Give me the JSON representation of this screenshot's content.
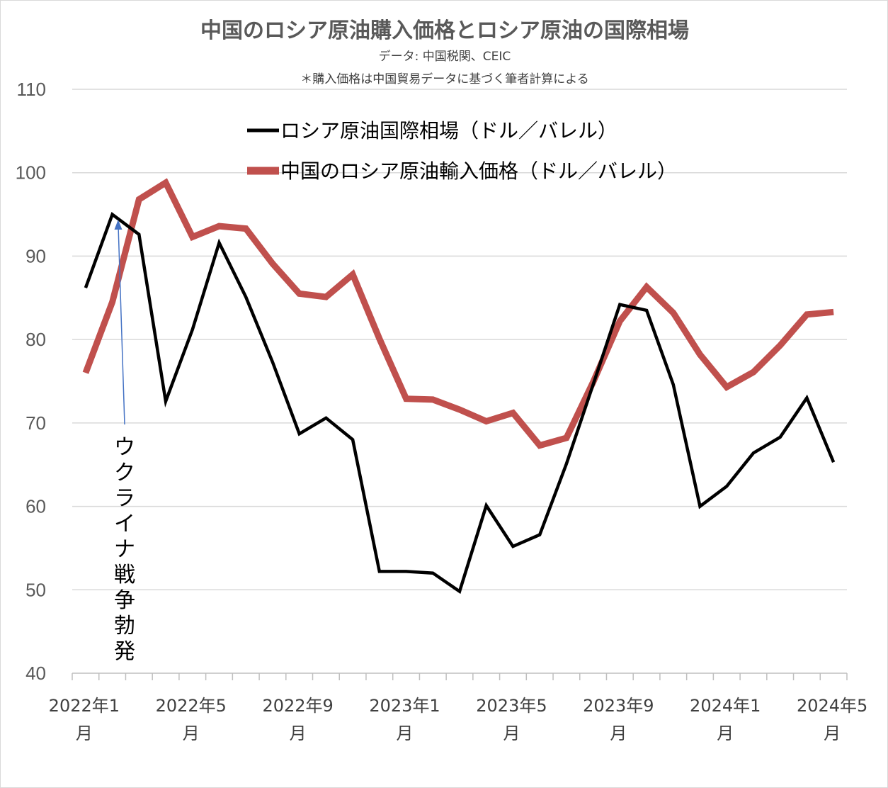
{
  "chart_data": {
    "type": "line",
    "title": "中国のロシア原油購入価格とロシア原油の国際相場",
    "subtitle": [
      "データ: 中国税関、CEIC",
      "＊購入価格は中国貿易データに基づく筆者計算による"
    ],
    "xlabel": "",
    "ylabel": "",
    "ylim": [
      40,
      110
    ],
    "yticks": [
      40,
      50,
      60,
      70,
      80,
      90,
      100,
      110
    ],
    "xtick_labels": [
      {
        "line1": "2022年1",
        "line2": "月"
      },
      {
        "line1": "2022年5",
        "line2": "月"
      },
      {
        "line1": "2022年9",
        "line2": "月"
      },
      {
        "line1": "2023年1",
        "line2": "月"
      },
      {
        "line1": "2023年5",
        "line2": "月"
      },
      {
        "line1": "2023年9",
        "line2": "月"
      },
      {
        "line1": "2024年1",
        "line2": "月"
      },
      {
        "line1": "2024年5",
        "line2": "月"
      }
    ],
    "x": [
      "2022-01",
      "2022-02",
      "2022-03",
      "2022-04",
      "2022-05",
      "2022-06",
      "2022-07",
      "2022-08",
      "2022-09",
      "2022-10",
      "2022-11",
      "2022-12",
      "2023-01",
      "2023-02",
      "2023-03",
      "2023-04",
      "2023-05",
      "2023-06",
      "2023-07",
      "2023-08",
      "2023-09",
      "2023-10",
      "2023-11",
      "2023-12",
      "2024-01",
      "2024-02",
      "2024-03",
      "2024-04",
      "2024-05"
    ],
    "grid": true,
    "legend_position": "top-center",
    "series": [
      {
        "name": "ロシア原油国際相場（ドル／バレル）",
        "color": "#000000",
        "values": [
          86.2,
          95.0,
          92.6,
          72.6,
          81.2,
          91.6,
          85.1,
          77.3,
          68.7,
          70.6,
          68.0,
          52.2,
          52.2,
          52.0,
          49.8,
          60.1,
          55.2,
          56.6,
          65.1,
          74.6,
          84.2,
          83.5,
          74.6,
          60.0,
          62.4,
          66.4,
          68.3,
          73.0,
          65.3
        ]
      },
      {
        "name": "中国のロシア原油輸入価格（ドル／バレル）",
        "color": "#c0504d",
        "values": [
          76.0,
          84.5,
          96.8,
          98.8,
          92.3,
          93.6,
          93.3,
          89.1,
          85.5,
          85.1,
          87.8,
          80.1,
          72.9,
          72.8,
          71.6,
          70.2,
          71.2,
          67.3,
          68.2,
          74.9,
          82.2,
          86.3,
          83.2,
          78.2,
          74.3,
          76.1,
          79.3,
          83.0,
          83.3
        ]
      }
    ],
    "annotations": [
      {
        "text": "ウクライナ戦争勃発",
        "x": "2022-02"
      }
    ]
  }
}
